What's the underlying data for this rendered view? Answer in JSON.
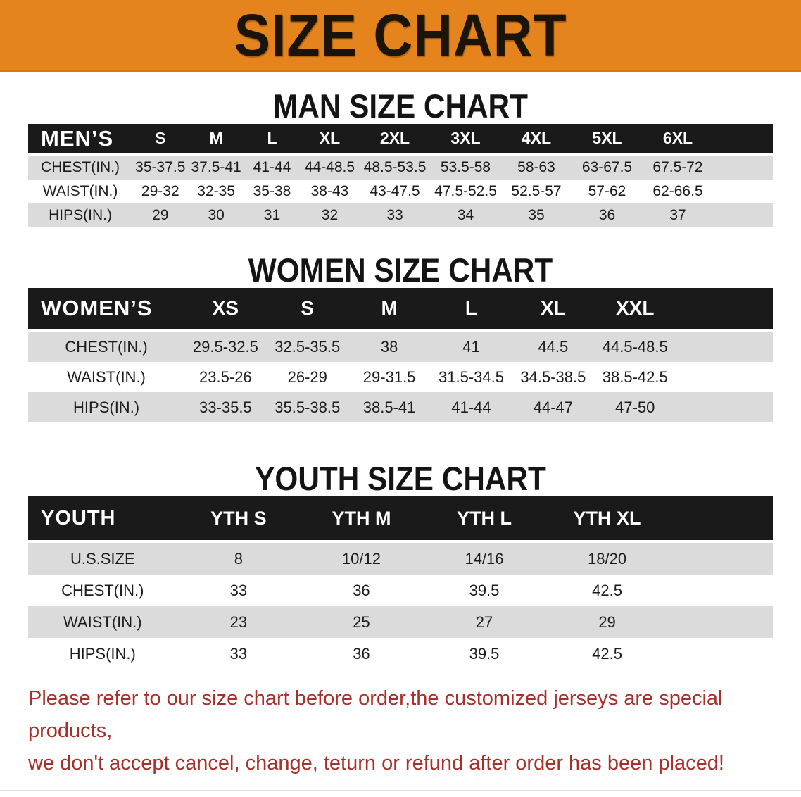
{
  "banner": {
    "title": "SIZE CHART"
  },
  "colors": {
    "banner_bg": "#e5831d",
    "header_bar_bg": "#1a1a1a",
    "row_stripe": "#dbdbdb",
    "note_text": "#a9302a"
  },
  "sections": [
    {
      "heading": "MAN SIZE CHART",
      "table": {
        "label": "MEN’S",
        "columns": [
          "S",
          "M",
          "L",
          "XL",
          "2XL",
          "3XL",
          "4XL",
          "5XL",
          "6XL"
        ],
        "rows": [
          {
            "label": "CHEST(IN.)",
            "values": [
              "35-37.5",
              "37.5-41",
              "41-44",
              "44-48.5",
              "48.5-53.5",
              "53.5-58",
              "58-63",
              "63-67.5",
              "67.5-72"
            ]
          },
          {
            "label": "WAIST(IN.)",
            "values": [
              "29-32",
              "32-35",
              "35-38",
              "38-43",
              "43-47.5",
              "47.5-52.5",
              "52.5-57",
              "57-62",
              "62-66.5"
            ]
          },
          {
            "label": "HIPS(IN.)",
            "values": [
              "29",
              "30",
              "31",
              "32",
              "33",
              "34",
              "35",
              "36",
              "37"
            ]
          }
        ]
      }
    },
    {
      "heading": "WOMEN SIZE CHART",
      "table": {
        "label": "WOMEN’S",
        "columns": [
          "XS",
          "S",
          "M",
          "L",
          "XL",
          "XXL"
        ],
        "rows": [
          {
            "label": "CHEST(IN.)",
            "values": [
              "29.5-32.5",
              "32.5-35.5",
              "38",
              "41",
              "44.5",
              "44.5-48.5"
            ]
          },
          {
            "label": "WAIST(IN.)",
            "values": [
              "23.5-26",
              "26-29",
              "29-31.5",
              "31.5-34.5",
              "34.5-38.5",
              "38.5-42.5"
            ]
          },
          {
            "label": "HIPS(IN.)",
            "values": [
              "33-35.5",
              "35.5-38.5",
              "38.5-41",
              "41-44",
              "44-47",
              "47-50"
            ]
          }
        ]
      }
    },
    {
      "heading": "YOUTH SIZE CHART",
      "table": {
        "label": "YOUTH",
        "columns": [
          "YTH S",
          "YTH M",
          "YTH L",
          "YTH XL"
        ],
        "rows": [
          {
            "label": "U.S.SIZE",
            "values": [
              "8",
              "10/12",
              "14/16",
              "18/20"
            ]
          },
          {
            "label": "CHEST(IN.)",
            "values": [
              "33",
              "36",
              "39.5",
              "42.5"
            ]
          },
          {
            "label": "WAIST(IN.)",
            "values": [
              "23",
              "25",
              "27",
              "29"
            ]
          },
          {
            "label": "HIPS(IN.)",
            "values": [
              "33",
              "36",
              "39.5",
              "42.5"
            ]
          }
        ]
      }
    }
  ],
  "note": {
    "line1": "Please refer to our size chart before order,the customized jerseys are special products,",
    "line2": "we don't accept cancel, change, teturn or refund after order has been placed!"
  }
}
